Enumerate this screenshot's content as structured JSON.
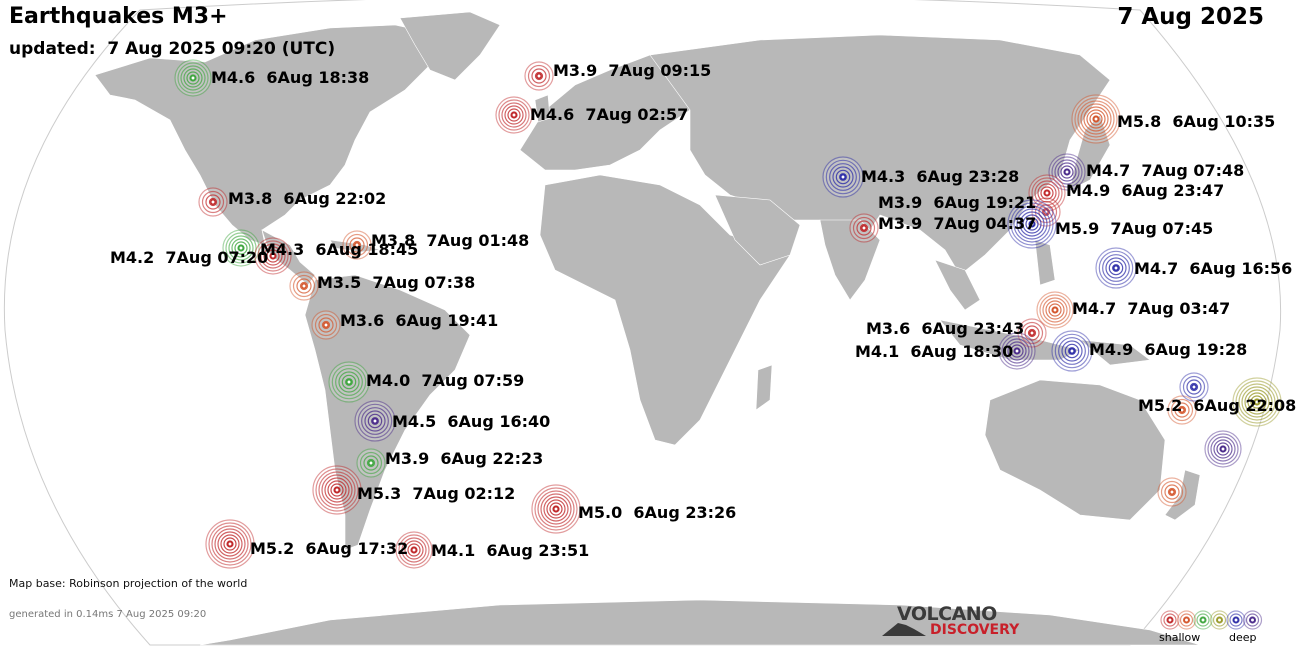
{
  "header": {
    "title": "Earthquakes M3+",
    "date": "7 Aug 2025",
    "updated": "updated:  7 Aug 2025 09:20 (UTC)"
  },
  "footer": {
    "map_base": "Map base: Robinson projection of the world",
    "generated": "generated in 0.14ms  7 Aug 2025 09:20"
  },
  "logo": {
    "line1": "VOLCANO",
    "line2": "DISCOVERY"
  },
  "legend": {
    "shallow_label": "shallow",
    "deep_label": "deep",
    "colors": [
      "#c0282a",
      "#d4562c",
      "#3ea63e",
      "#9a9a2a",
      "#2e2ea8",
      "#4a2a8a"
    ]
  },
  "colors": {
    "ocean": "#ffffff",
    "land": "#b8b8b8",
    "depth_shallow": "#c0282a",
    "depth_shallow2": "#d4562c",
    "depth_mid": "#3ea63e",
    "depth_mid2": "#9a9a2a",
    "depth_deep": "#2e2ea8",
    "depth_deeper": "#4a2a8a"
  },
  "quakes": [
    {
      "label": "M4.6  6Aug 18:38",
      "color": "#3ea63e"
    },
    {
      "label": "M3.9  7Aug 09:15",
      "color": "#c0282a"
    },
    {
      "label": "M4.6  7Aug 02:57",
      "color": "#c0282a"
    },
    {
      "label": "M5.8  6Aug 10:35",
      "color": "#d4562c"
    },
    {
      "label": "M3.8  6Aug 22:02",
      "color": "#c0282a"
    },
    {
      "label": "M4.3  6Aug 23:28",
      "color": "#2e2ea8"
    },
    {
      "label": "M4.7  7Aug 07:48",
      "color": "#4a2a8a"
    },
    {
      "label": "M4.9  6Aug 23:47",
      "color": "#c0282a"
    },
    {
      "label": "M3.9  6Aug 19:21",
      "color": "#c0282a"
    },
    {
      "label": "M3.9  7Aug 04:37",
      "color": "#c0282a"
    },
    {
      "label": "M5.9  7Aug 07:45",
      "color": "#2e2ea8"
    },
    {
      "label": "M3.8  7Aug 01:48",
      "color": "#d4562c"
    },
    {
      "label": "M4.2  7Aug 07:20",
      "color": "#3ea63e"
    },
    {
      "label": "M4.3  6Aug 18:45",
      "color": "#c0282a"
    },
    {
      "label": "M4.7  6Aug 16:56",
      "color": "#2e2ea8"
    },
    {
      "label": "M3.5  7Aug 07:38",
      "color": "#d4562c"
    },
    {
      "label": "M4.7  7Aug 03:47",
      "color": "#d4562c"
    },
    {
      "label": "M3.6  6Aug 19:41",
      "color": "#d4562c"
    },
    {
      "label": "M3.6  6Aug 23:43",
      "color": "#c0282a"
    },
    {
      "label": "M4.1  6Aug 18:30",
      "color": "#4a2a8a"
    },
    {
      "label": "M4.9  6Aug 19:28",
      "color": "#2e2ea8"
    },
    {
      "label": "M4.0  7Aug 07:59",
      "color": "#3ea63e"
    },
    {
      "label": "M5.2  6Aug 22:08",
      "color": "#d4562c"
    },
    {
      "label": "M4.5  6Aug 16:40",
      "color": "#4a2a8a"
    },
    {
      "label": "M3.9  6Aug 22:23",
      "color": "#3ea63e"
    },
    {
      "label": "M5.3  7Aug 02:12",
      "color": "#c0282a"
    },
    {
      "label": "M5.0  6Aug 23:26",
      "color": "#c0282a"
    },
    {
      "label": "M5.2  6Aug 17:32",
      "color": "#c0282a"
    },
    {
      "label": "M4.1  6Aug 23:51",
      "color": "#c0282a"
    },
    {
      "label": "",
      "color": "#2e2ea8"
    },
    {
      "label": "",
      "color": "#9a9a2a"
    },
    {
      "label": "",
      "color": "#4a2a8a"
    },
    {
      "label": "",
      "color": "#d4562c"
    }
  ]
}
